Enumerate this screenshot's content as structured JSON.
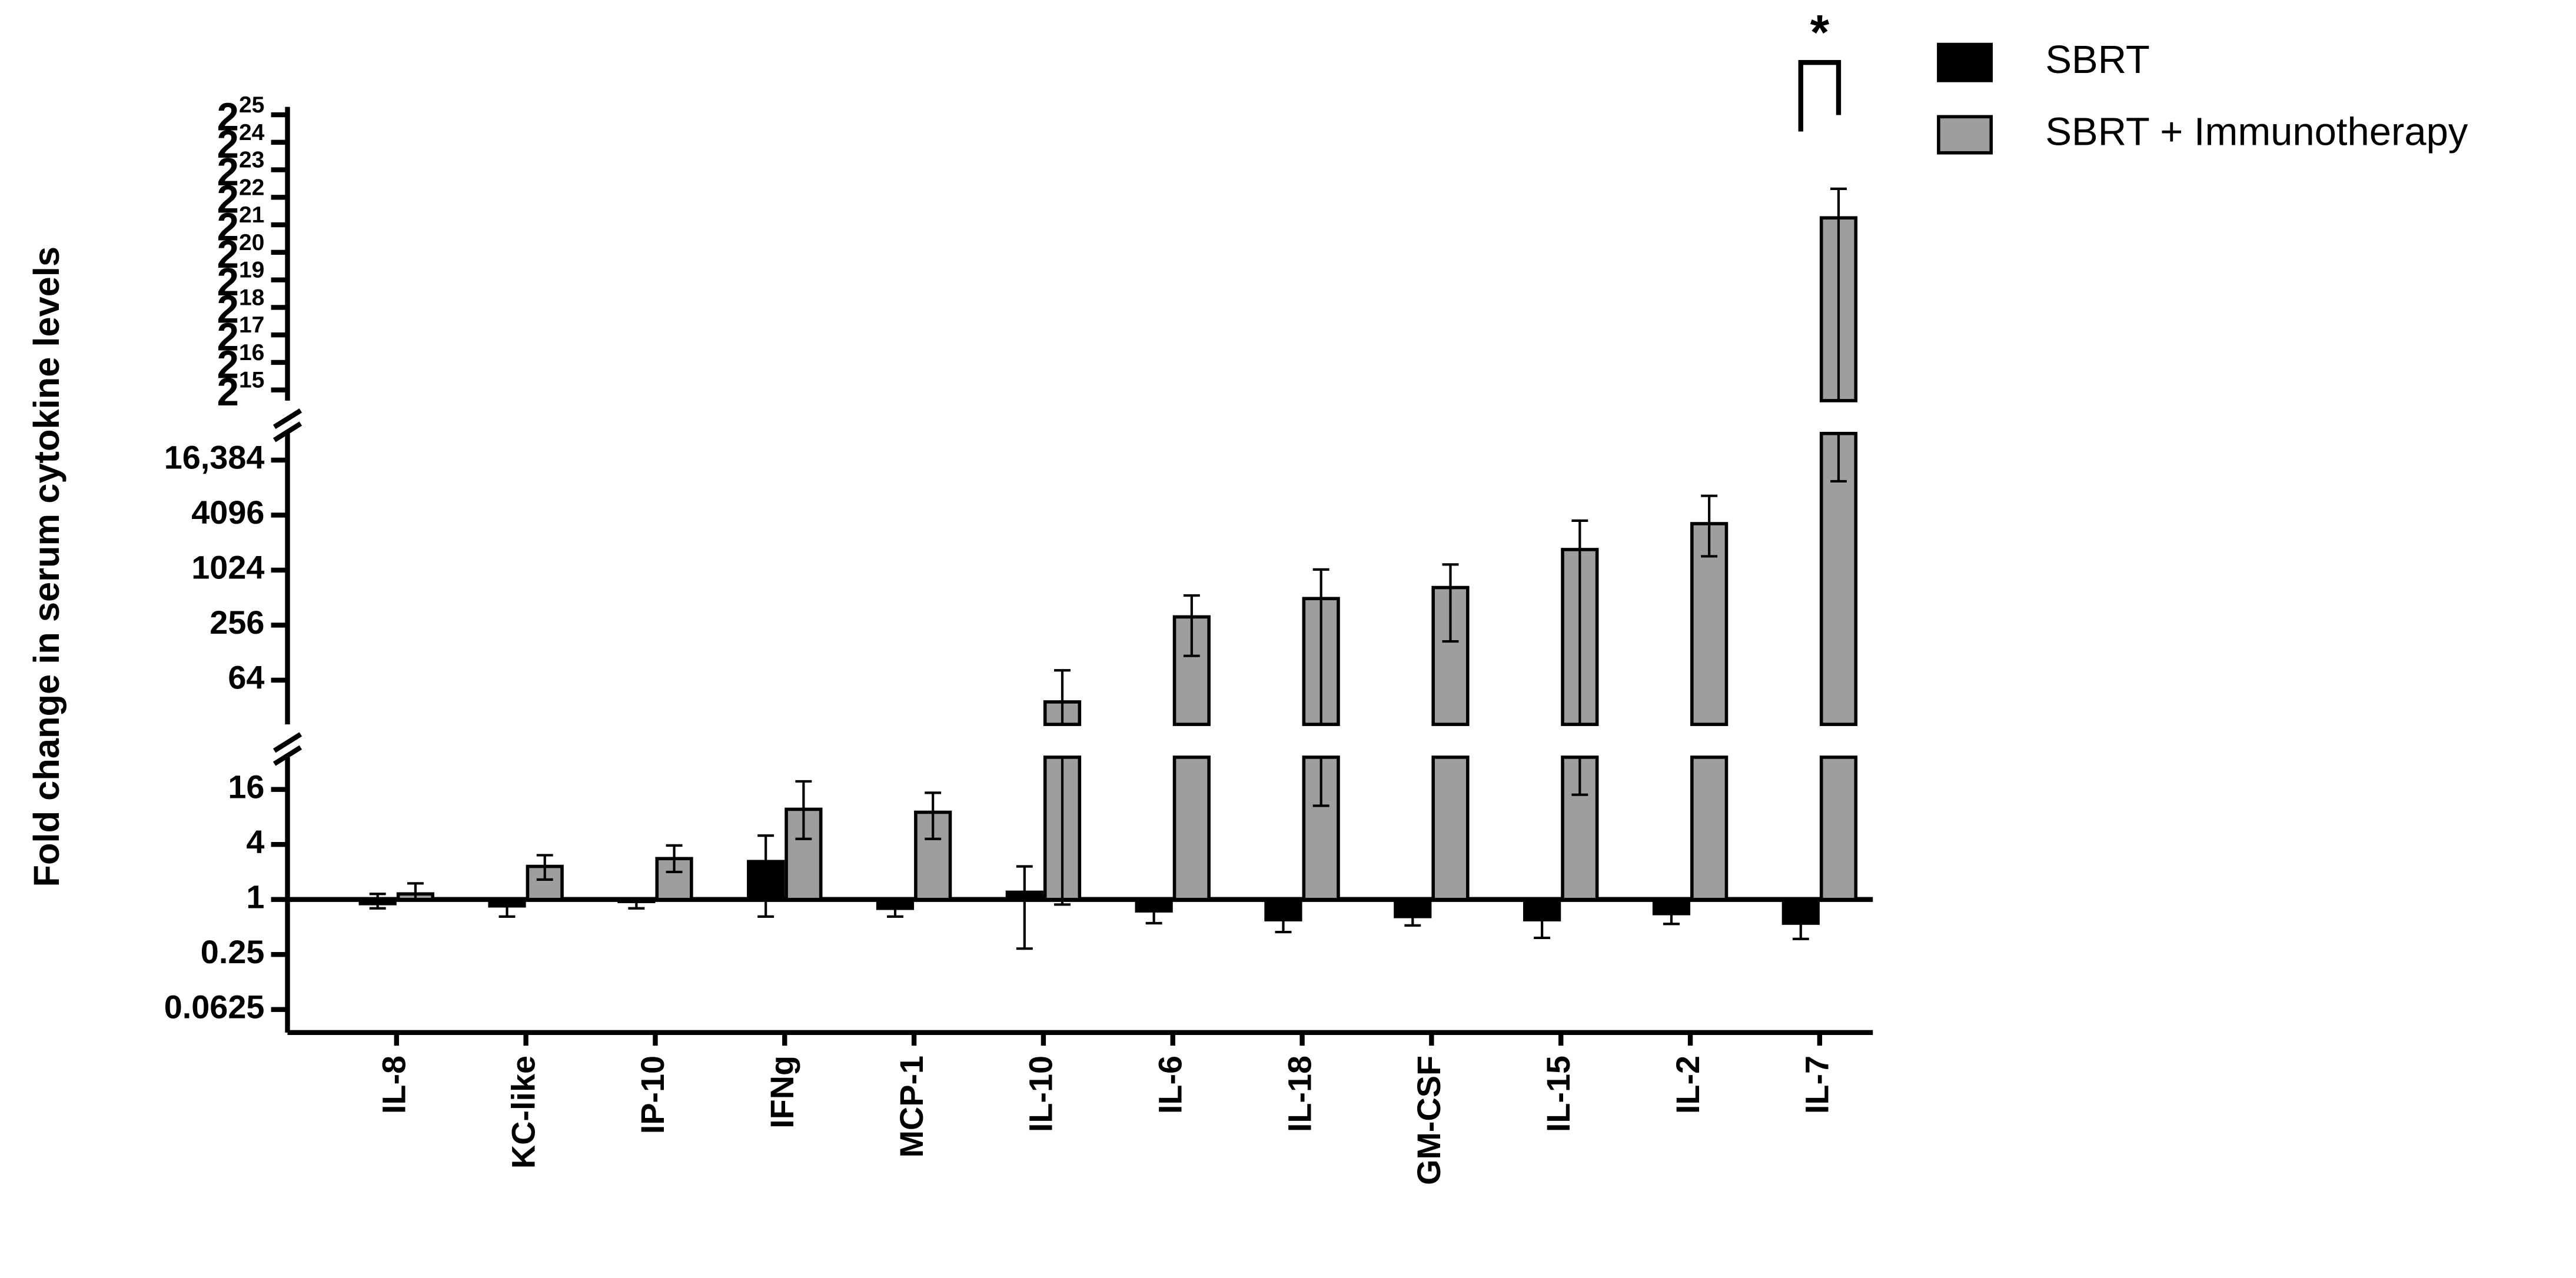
{
  "chart_data": {
    "type": "bar",
    "y_label": "Fold change in serum cytokine levels",
    "yscale": "log2",
    "legend": "right",
    "annotation": "*",
    "categories": [
      "IL-8",
      "KC-like",
      "IP-10",
      "IFNg",
      "MCP-1",
      "IL-10",
      "IL-6",
      "IL-18",
      "GM-CSF",
      "IL-15",
      "IL-2",
      "IL-7"
    ],
    "series": [
      {
        "name": "SBRT",
        "color": "#000000",
        "values": [
          0.9,
          0.85,
          0.95,
          2.6,
          0.8,
          1.2,
          0.75,
          0.6,
          0.65,
          0.6,
          0.7,
          0.55
        ],
        "error_lower": [
          0.8,
          0.65,
          0.8,
          0.65,
          0.65,
          0.29,
          0.55,
          0.44,
          0.52,
          0.38,
          0.54,
          0.37
        ],
        "error_upper": [
          1.15,
          1.0,
          1.0,
          5,
          0.85,
          2.3,
          0.75,
          0.6,
          0.65,
          0.6,
          0.7,
          0.55
        ]
      },
      {
        "name": "SBRT + Immunotherapy",
        "color": "#9e9e9e",
        "values": [
          1.15,
          2.3,
          2.8,
          9.7,
          9,
          37,
          315,
          500,
          660,
          1720,
          3300,
          2500000
        ],
        "error_lower": [
          1.0,
          1.65,
          2.0,
          4.6,
          4.6,
          0.88,
          118,
          10.6,
          170,
          14,
          1450,
          9600
        ],
        "error_upper": [
          1.5,
          3.05,
          3.9,
          19.6,
          14.7,
          82,
          540,
          1040,
          1180,
          3560,
          6650,
          5200000
        ]
      }
    ],
    "y_segments": [
      {
        "ylim": [
          0.035,
          36
        ],
        "yticks": [
          0.0625,
          0.25,
          1,
          4,
          16
        ]
      },
      {
        "ylim": [
          21,
          32000
        ],
        "yticks": [
          64,
          256,
          1024,
          4096,
          {
            "value": 16384,
            "label": "16,384"
          }
        ]
      },
      {
        "ylim": [
          25000,
          41000000
        ],
        "yticks": [
          {
            "value": 32768,
            "label": "2",
            "exponent": "15"
          },
          {
            "value": 65536,
            "label": "2",
            "exponent": "16"
          },
          {
            "value": 131072,
            "label": "2",
            "exponent": "17"
          },
          {
            "value": 262144,
            "label": "2",
            "exponent": "18"
          },
          {
            "value": 524288,
            "label": "2",
            "exponent": "19"
          },
          {
            "value": 1048576,
            "label": "2",
            "exponent": "20"
          },
          {
            "value": 2097152,
            "label": "2",
            "exponent": "21"
          },
          {
            "value": 4194304,
            "label": "2",
            "exponent": "22"
          },
          {
            "value": 8388608,
            "label": "2",
            "exponent": "23"
          },
          {
            "value": 16777216,
            "label": "2",
            "exponent": "24"
          },
          {
            "value": 33554432,
            "label": "2",
            "exponent": "25"
          }
        ]
      }
    ]
  }
}
